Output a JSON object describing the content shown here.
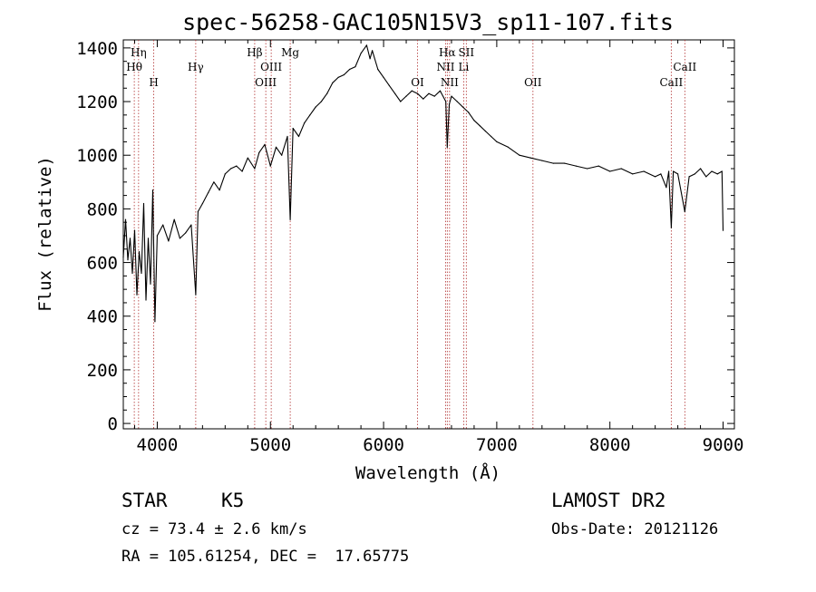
{
  "chart_data": {
    "type": "line",
    "title": "spec-56258-GAC105N15V3_sp11-107.fits",
    "xlabel": "Wavelength (Å)",
    "ylabel": "Flux (relative)",
    "xlim": [
      3700,
      9100
    ],
    "ylim": [
      -20,
      1430
    ],
    "xticks": [
      4000,
      5000,
      6000,
      7000,
      8000,
      9000
    ],
    "yticks": [
      0,
      200,
      400,
      600,
      800,
      1000,
      1200,
      1400
    ],
    "grid": false,
    "legend": "none",
    "series": [
      {
        "x": [
          3700,
          3720,
          3740,
          3760,
          3780,
          3800,
          3820,
          3840,
          3860,
          3880,
          3900,
          3920,
          3940,
          3960,
          3980,
          4000,
          4050,
          4100,
          4150,
          4200,
          4250,
          4300,
          4340,
          4360,
          4400,
          4450,
          4500,
          4550,
          4600,
          4650,
          4700,
          4750,
          4800,
          4861,
          4900,
          4950,
          5000,
          5050,
          5100,
          5150,
          5175,
          5200,
          5250,
          5300,
          5350,
          5400,
          5450,
          5500,
          5550,
          5600,
          5650,
          5700,
          5750,
          5800,
          5850,
          5880,
          5900,
          5950,
          6000,
          6050,
          6100,
          6150,
          6200,
          6250,
          6300,
          6350,
          6400,
          6450,
          6500,
          6550,
          6563,
          6580,
          6600,
          6650,
          6700,
          6750,
          6800,
          6850,
          6900,
          6950,
          7000,
          7100,
          7200,
          7300,
          7400,
          7500,
          7600,
          7700,
          7800,
          7900,
          8000,
          8100,
          8200,
          8300,
          8400,
          8450,
          8498,
          8520,
          8542,
          8560,
          8600,
          8662,
          8700,
          8750,
          8800,
          8850,
          8900,
          8950,
          8990,
          9000
        ],
        "y": [
          620,
          760,
          610,
          690,
          560,
          720,
          480,
          640,
          560,
          820,
          460,
          690,
          520,
          870,
          380,
          700,
          740,
          680,
          760,
          690,
          710,
          740,
          480,
          790,
          820,
          860,
          900,
          870,
          930,
          950,
          960,
          940,
          990,
          950,
          1010,
          1040,
          960,
          1030,
          1000,
          1070,
          760,
          1100,
          1070,
          1120,
          1150,
          1180,
          1200,
          1230,
          1270,
          1290,
          1300,
          1320,
          1330,
          1380,
          1410,
          1360,
          1390,
          1320,
          1290,
          1260,
          1230,
          1200,
          1220,
          1240,
          1230,
          1210,
          1230,
          1220,
          1240,
          1200,
          1030,
          1190,
          1220,
          1200,
          1180,
          1160,
          1130,
          1110,
          1090,
          1070,
          1050,
          1030,
          1000,
          990,
          980,
          970,
          970,
          960,
          950,
          960,
          940,
          950,
          930,
          940,
          920,
          930,
          880,
          940,
          730,
          940,
          930,
          790,
          920,
          930,
          950,
          920,
          940,
          930,
          940,
          720
        ]
      }
    ],
    "spectral_lines": [
      {
        "label": "Hη",
        "x": 3835,
        "row": 1
      },
      {
        "label": "Hθ",
        "x": 3797,
        "row": 2
      },
      {
        "label": "H",
        "x": 3969,
        "row": 3
      },
      {
        "label": "Hγ",
        "x": 4340,
        "row": 2
      },
      {
        "label": "Hβ",
        "x": 4861,
        "row": 1
      },
      {
        "label": "OIII",
        "x": 5007,
        "row": 2
      },
      {
        "label": "OIII",
        "x": 4959,
        "row": 3
      },
      {
        "label": "Mg",
        "x": 5175,
        "row": 1
      },
      {
        "label": "OI",
        "x": 6300,
        "row": 3
      },
      {
        "label": "Hα",
        "x": 6563,
        "row": 1
      },
      {
        "label": "NII",
        "x": 6548,
        "row": 2
      },
      {
        "label": "NII",
        "x": 6583,
        "row": 3
      },
      {
        "label": "Li",
        "x": 6708,
        "row": 2
      },
      {
        "label": "OII",
        "x": 7320,
        "row": 3
      },
      {
        "label": "SII",
        "x": 6731,
        "row": 1
      },
      {
        "label": "CaII",
        "x": 8662,
        "row": 2
      },
      {
        "label": "CaII",
        "x": 8542,
        "row": 3
      }
    ]
  },
  "info": {
    "class_label": "STAR",
    "subclass_label": "K5",
    "survey": "LAMOST DR2",
    "cz": "cz = 73.4 ± 2.6 km/s",
    "obs_date": "Obs-Date: 20121126",
    "radec": "RA = 105.61254, DEC =  17.65775"
  }
}
